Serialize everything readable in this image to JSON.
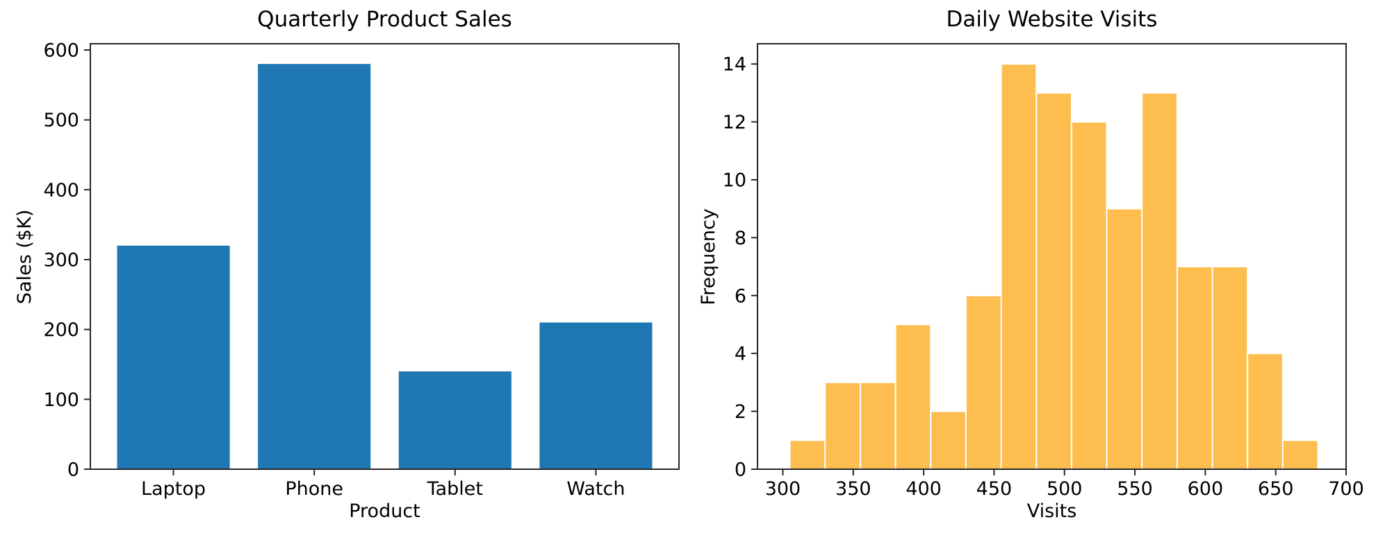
{
  "figure": {
    "background": "#ffffff",
    "axis_color": "#262626",
    "text_color": "#000000"
  },
  "chart_data": [
    {
      "type": "bar",
      "title": "Quarterly Product Sales",
      "xlabel": "Product",
      "ylabel": "Sales ($K)",
      "categories": [
        "Laptop",
        "Phone",
        "Tablet",
        "Watch"
      ],
      "values": [
        320,
        580,
        140,
        210
      ],
      "bar_color": "#1f77b4",
      "bar_width": 0.8,
      "xlim": [
        -0.59,
        3.59
      ],
      "ylim": [
        0,
        609
      ],
      "yticks": [
        0,
        100,
        200,
        300,
        400,
        500,
        600
      ],
      "grid": false,
      "legend": "none"
    },
    {
      "type": "histogram",
      "title": "Daily Website Visits",
      "xlabel": "Visits",
      "ylabel": "Frequency",
      "bin_start": 305,
      "bin_width": 25,
      "counts": [
        1,
        3,
        3,
        5,
        2,
        6,
        14,
        13,
        12,
        9,
        13,
        7,
        7,
        4,
        1
      ],
      "bar_color": "#fdbe4f",
      "bar_edge_color": "#ffffff",
      "xlim": [
        282,
        700
      ],
      "ylim": [
        0,
        14.7
      ],
      "xticks": [
        300,
        350,
        400,
        450,
        500,
        550,
        600,
        650,
        700
      ],
      "yticks": [
        0,
        2,
        4,
        6,
        8,
        10,
        12,
        14
      ],
      "grid": false,
      "legend": "none"
    }
  ]
}
